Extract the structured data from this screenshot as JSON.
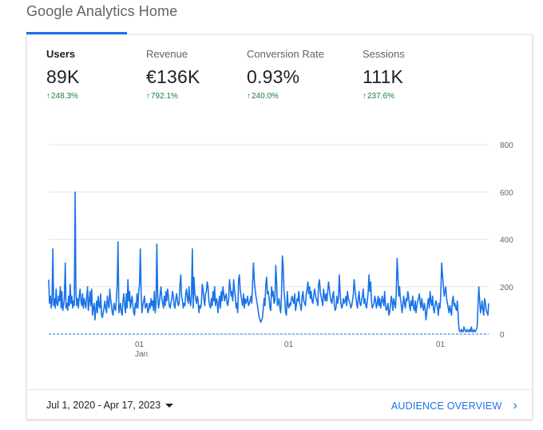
{
  "page": {
    "title": "Google Analytics Home"
  },
  "metrics": [
    {
      "label": "Users",
      "value": "89K",
      "change": "248.3%",
      "active": true
    },
    {
      "label": "Revenue",
      "value": "€136K",
      "change": "792.1%",
      "active": false
    },
    {
      "label": "Conversion Rate",
      "value": "0.93%",
      "change": "240.0%",
      "active": false
    },
    {
      "label": "Sessions",
      "value": "111K",
      "change": "237.6%",
      "active": false
    }
  ],
  "footer": {
    "date_range": "Jul 1, 2020 - Apr 17, 2023",
    "link_label": "AUDIENCE OVERVIEW"
  },
  "colors": {
    "accent": "#1a73e8",
    "positive": "#188038"
  },
  "icons": {
    "change_arrow": "arrow-up-icon",
    "dropdown": "caret-down-icon",
    "link": "chevron-right-icon"
  },
  "chart_data": {
    "type": "line",
    "y_ticks": [
      "800",
      "600",
      "400",
      "200",
      "0"
    ],
    "ylim": [
      0,
      800
    ],
    "x_ticks": [
      {
        "label": "01",
        "sublabel": "Jan"
      },
      {
        "label": "01",
        "sublabel": ""
      },
      {
        "label": "01",
        "sublabel": ""
      }
    ],
    "grid": true,
    "series": [
      {
        "style": "solid",
        "values": [
          230,
          130,
          160,
          110,
          140,
          360,
          120,
          150,
          110,
          190,
          130,
          120,
          160,
          140,
          200,
          110,
          180,
          100,
          120,
          150,
          300,
          110,
          130,
          100,
          160,
          120,
          210,
          130,
          160,
          110,
          140,
          120,
          600,
          170,
          120,
          150,
          110,
          160,
          190,
          140,
          120,
          170,
          110,
          150,
          130,
          110,
          160,
          200,
          100,
          140,
          180,
          120,
          190,
          80,
          110,
          130,
          60,
          100,
          140,
          90,
          160,
          120,
          110,
          170,
          80,
          70,
          90,
          110,
          140,
          110,
          90,
          160,
          130,
          110,
          190,
          150,
          120,
          90,
          80,
          130,
          110,
          100,
          150,
          210,
          390,
          90,
          110,
          130,
          90,
          80,
          140,
          170,
          120,
          90,
          170,
          110,
          230,
          140,
          180,
          110,
          140,
          160,
          120,
          90,
          80,
          130,
          110,
          170,
          110,
          180,
          210,
          360,
          170,
          90,
          120,
          140,
          160,
          110,
          120,
          130,
          90,
          100,
          130,
          110,
          150,
          120,
          140,
          100,
          180,
          90,
          130,
          380,
          160,
          110,
          130,
          170,
          200,
          150,
          130,
          110,
          160,
          120,
          180,
          140,
          190,
          160,
          120,
          110,
          130,
          150,
          180,
          160,
          120,
          110,
          150,
          170,
          140,
          120,
          130,
          210,
          250,
          160,
          140,
          110,
          130,
          120,
          170,
          190,
          150,
          130,
          200,
          140,
          120,
          170,
          360,
          110,
          240,
          170,
          150,
          130,
          160,
          140,
          90,
          120,
          110,
          130,
          210,
          190,
          150,
          120,
          170,
          180,
          220,
          200,
          140,
          120,
          110,
          150,
          120,
          180,
          140,
          200,
          120,
          150,
          140,
          90,
          130,
          160,
          110,
          180,
          140,
          200,
          170,
          140,
          160,
          170,
          130,
          120,
          150,
          230,
          200,
          160,
          180,
          140,
          230,
          190,
          160,
          110,
          130,
          90,
          230,
          250,
          190,
          160,
          140,
          120,
          170,
          110,
          150,
          130,
          140,
          160,
          120,
          130,
          140,
          160,
          130,
          210,
          300,
          230,
          190,
          160,
          140,
          120,
          90,
          70,
          60,
          50,
          60,
          70,
          110,
          150,
          120,
          210,
          240,
          170,
          180,
          150,
          110,
          100,
          200,
          160,
          180,
          130,
          140,
          290,
          230,
          120,
          130,
          150,
          110,
          90,
          160,
          330,
          290,
          190,
          140,
          90,
          80,
          180,
          120,
          110,
          130,
          120,
          150,
          160,
          140,
          130,
          170,
          100,
          120,
          150,
          140,
          180,
          130,
          120,
          100,
          160,
          180,
          140,
          130,
          120,
          170,
          190,
          220,
          170,
          200,
          150,
          180,
          140,
          130,
          160,
          190,
          170,
          150,
          140,
          120,
          210,
          230,
          180,
          160,
          140,
          120,
          190,
          160,
          140,
          170,
          140,
          180,
          220,
          190,
          160,
          140,
          130,
          160,
          180,
          120,
          100,
          110,
          160,
          130,
          150,
          250,
          180,
          130,
          110,
          120,
          150,
          130,
          140,
          160,
          120,
          180,
          150,
          140,
          130,
          110,
          120,
          140,
          170,
          230,
          190,
          160,
          130,
          110,
          150,
          180,
          130,
          120,
          140,
          160,
          190,
          130,
          150,
          120,
          110,
          140,
          180,
          250,
          180,
          220,
          140,
          110,
          120,
          130,
          160,
          140,
          110,
          130,
          160,
          120,
          150,
          110,
          130,
          160,
          140,
          120,
          180,
          120,
          100,
          110,
          130,
          80,
          90,
          120,
          160,
          140,
          100,
          150,
          130,
          110,
          170,
          320,
          250,
          160,
          200,
          150,
          130,
          90,
          120,
          160,
          130,
          110,
          150,
          140,
          180,
          160,
          120,
          100,
          140,
          120,
          160,
          110,
          100,
          140,
          90,
          120,
          140,
          150,
          170,
          130,
          110,
          150,
          120,
          100,
          130,
          110,
          60,
          90,
          130,
          150,
          110,
          180,
          140,
          120,
          160,
          110,
          90,
          120,
          140,
          130,
          110,
          80,
          130,
          110,
          170,
          300,
          250,
          210,
          160,
          180,
          200,
          150,
          130,
          110,
          90,
          120,
          100,
          80,
          140,
          160,
          120,
          130,
          110,
          100,
          140,
          80,
          20,
          10,
          10,
          20,
          10,
          10,
          30,
          20,
          10,
          10,
          20,
          10,
          10,
          20,
          10,
          30,
          10,
          10,
          20,
          10,
          10,
          20,
          30,
          120,
          200,
          150,
          90,
          110,
          140,
          100,
          80,
          150,
          130,
          100,
          90,
          80,
          130
        ]
      },
      {
        "style": "dashed",
        "values": [
          0,
          0,
          0,
          0,
          0,
          0,
          0,
          0,
          0,
          0,
          0,
          0,
          0,
          0,
          0,
          0,
          0,
          0,
          0,
          0,
          0,
          0,
          0,
          0,
          0,
          0,
          0,
          0,
          0,
          0,
          0,
          0,
          0,
          0,
          0,
          0,
          0,
          0,
          0,
          0,
          0,
          0,
          0,
          0,
          0,
          0,
          0,
          0,
          0,
          0,
          0,
          0,
          0,
          0,
          0,
          0,
          0,
          0,
          0,
          0,
          0,
          0,
          0,
          0,
          0,
          0,
          0,
          0,
          0,
          0,
          0,
          0,
          0,
          0,
          0,
          0,
          0,
          0,
          0,
          0,
          0,
          0,
          0,
          0,
          0,
          0,
          0,
          0,
          0,
          0,
          0,
          0,
          0,
          0,
          0,
          0,
          0,
          0,
          0,
          0,
          0,
          0,
          0,
          0,
          0,
          0,
          0,
          0,
          0,
          0,
          0,
          0,
          0,
          0,
          0,
          0,
          0,
          0,
          0,
          0,
          0,
          0,
          0,
          0,
          0,
          0,
          0,
          0,
          0,
          0,
          0,
          0,
          0,
          0,
          0,
          0,
          0,
          0,
          0,
          0,
          0,
          0,
          0,
          0,
          0,
          0,
          0,
          0,
          0,
          0,
          0,
          0,
          0,
          0,
          0,
          0,
          0,
          0,
          0,
          0,
          0,
          0,
          0,
          0,
          0,
          0,
          0,
          0,
          0,
          0,
          0,
          0,
          0,
          0,
          0,
          0,
          0,
          0,
          0,
          0,
          0,
          0,
          0,
          0,
          0,
          0,
          0,
          0,
          0,
          0,
          0,
          0,
          0,
          0,
          0,
          0,
          0,
          0,
          0,
          0,
          0,
          0,
          0,
          0,
          0,
          0,
          0,
          0,
          0,
          0,
          0,
          0,
          0,
          0,
          0,
          0,
          0,
          0,
          0,
          0,
          0,
          0,
          0,
          0,
          0,
          0,
          0,
          0,
          0,
          0,
          0,
          0,
          0,
          0,
          0,
          0,
          0,
          0,
          0,
          0,
          0,
          0,
          0,
          0,
          0,
          0,
          0,
          0,
          0,
          0,
          0,
          0,
          0,
          0,
          0,
          0,
          0,
          0,
          0,
          0,
          0,
          0,
          0,
          0,
          0,
          0,
          0,
          0,
          0,
          0,
          0,
          0,
          0,
          0,
          0,
          0,
          0,
          0,
          0,
          0,
          0,
          0,
          0,
          0,
          0,
          0,
          0,
          0,
          0,
          0,
          0,
          0,
          0,
          0,
          0,
          0,
          0,
          0,
          0,
          0,
          0,
          0,
          0,
          0,
          0,
          0,
          0,
          0,
          0,
          0,
          0,
          0,
          0,
          0,
          0,
          0,
          0,
          0,
          0,
          0,
          0,
          0,
          0,
          0,
          0,
          0,
          0,
          0,
          0,
          0,
          0,
          0,
          0,
          0,
          0,
          0,
          0,
          0,
          0,
          0,
          0,
          0,
          0,
          0,
          0,
          0,
          0,
          0,
          0,
          0,
          0,
          0,
          0,
          0,
          0,
          0,
          0,
          0,
          0,
          0,
          0,
          0,
          0,
          0,
          0,
          0,
          0,
          0,
          0,
          0,
          0,
          0,
          0,
          0,
          0,
          0,
          0,
          0,
          0,
          0,
          0,
          0,
          0,
          0,
          0,
          0,
          0,
          0,
          0,
          0,
          0,
          0,
          0,
          0,
          0,
          0,
          0,
          0,
          0,
          0,
          0,
          0,
          0,
          0,
          0,
          0,
          0,
          0,
          0,
          0,
          0,
          0,
          0,
          0,
          0,
          0,
          0,
          0,
          0,
          0,
          0,
          0,
          0,
          0,
          0,
          0,
          0,
          0,
          0,
          0,
          0,
          0,
          0,
          0,
          0,
          0,
          0,
          0,
          0,
          0,
          0,
          0,
          0,
          0,
          0,
          0,
          0,
          0,
          0,
          0,
          0,
          0,
          0,
          0,
          0,
          0,
          0,
          0,
          0,
          0,
          0,
          0,
          0,
          0,
          0,
          0,
          0,
          0,
          0,
          0,
          0,
          0,
          0,
          0,
          0,
          0,
          0,
          0,
          0,
          0,
          0,
          0,
          0,
          0,
          0,
          0,
          0,
          0,
          0,
          0,
          0,
          0,
          0,
          0,
          0,
          0,
          0,
          0,
          0,
          0,
          0,
          0,
          0,
          0,
          0,
          0,
          0,
          0,
          0,
          0,
          0,
          0,
          0,
          0,
          0,
          0,
          0,
          0,
          0,
          0,
          0,
          0,
          0,
          0,
          0,
          0,
          0,
          0,
          0,
          0,
          0,
          0,
          0,
          0,
          0,
          0,
          0,
          0,
          0,
          0,
          0,
          0,
          0,
          0,
          0,
          0,
          0,
          0,
          0,
          0,
          0,
          0,
          0,
          0,
          0,
          0,
          0,
          0,
          0,
          0,
          0,
          0,
          0,
          0,
          0,
          0,
          0,
          0,
          0,
          0,
          0,
          0,
          0,
          0,
          0,
          0,
          0,
          0,
          0,
          0,
          0,
          0,
          0,
          0,
          0,
          0,
          0,
          0,
          0,
          0,
          0,
          0,
          0,
          0,
          0,
          0,
          0,
          0,
          0,
          0,
          0
        ]
      }
    ]
  }
}
